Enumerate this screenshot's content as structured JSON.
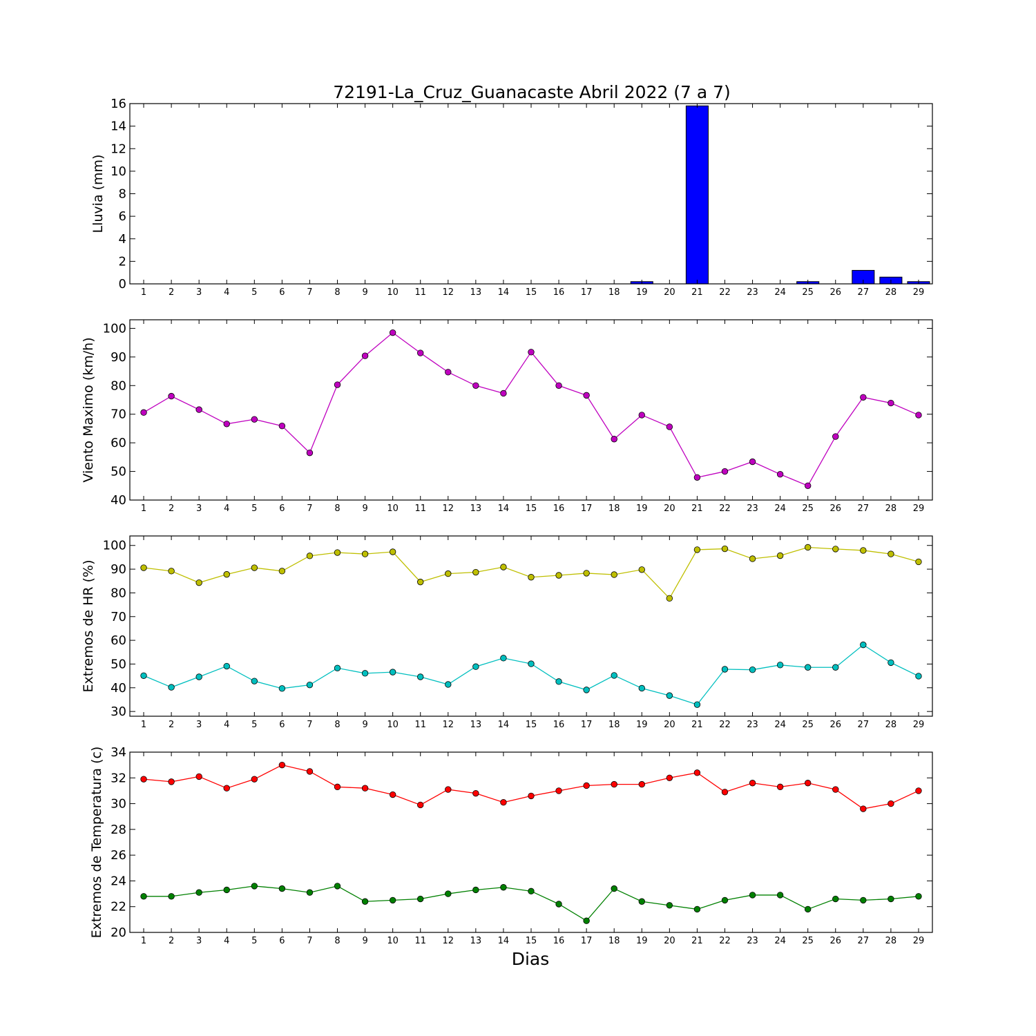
{
  "title": "72191-La_Cruz_Guanacaste Abril 2022  (7 a 7)",
  "xlabel": "Dias",
  "colors": {
    "rain_bar": "#0000ff",
    "wind": "#bf00bf",
    "hr_max": "#bfbf00",
    "hr_min": "#00bfbf",
    "temp_max": "#ff0000",
    "temp_min": "#008000"
  },
  "chart_data": [
    {
      "type": "bar",
      "ylabel": "Lluvia (mm)",
      "ylim": [
        0,
        16
      ],
      "yticks": [
        0,
        2,
        4,
        6,
        8,
        10,
        12,
        14,
        16
      ],
      "xlim": [
        0.5,
        29.5
      ],
      "categories": [
        "1",
        "2",
        "3",
        "4",
        "5",
        "6",
        "7",
        "8",
        "9",
        "10",
        "11",
        "12",
        "13",
        "14",
        "15",
        "16",
        "17",
        "18",
        "19",
        "20",
        "21",
        "22",
        "23",
        "24",
        "25",
        "26",
        "27",
        "28",
        "29"
      ],
      "series": [
        {
          "values": [
            0,
            0,
            0,
            0,
            0,
            0,
            0,
            0,
            0,
            0,
            0,
            0,
            0,
            0,
            0,
            0,
            0,
            0,
            0.2,
            0,
            15.8,
            0,
            0,
            0,
            0.2,
            0,
            1.2,
            0.6,
            0.2
          ]
        }
      ]
    },
    {
      "type": "line",
      "ylabel": "Viento Maximo (km/h)",
      "ylim": [
        40,
        103
      ],
      "yticks": [
        40,
        50,
        60,
        70,
        80,
        90,
        100
      ],
      "xlim": [
        0.5,
        29.5
      ],
      "categories": [
        "1",
        "2",
        "3",
        "4",
        "5",
        "6",
        "7",
        "8",
        "9",
        "10",
        "11",
        "12",
        "13",
        "14",
        "15",
        "16",
        "17",
        "18",
        "19",
        "20",
        "21",
        "22",
        "23",
        "24",
        "25",
        "26",
        "27",
        "28",
        "29"
      ],
      "series": [
        {
          "values": [
            70.6,
            76.3,
            71.6,
            66.6,
            68.2,
            65.9,
            56.5,
            80.3,
            90.4,
            98.5,
            91.4,
            84.7,
            80.0,
            77.3,
            91.7,
            80.0,
            76.6,
            61.3,
            69.7,
            65.6,
            47.9,
            50.0,
            53.4,
            49.0,
            45.0,
            62.2,
            75.9,
            73.9,
            69.7
          ]
        }
      ]
    },
    {
      "type": "line",
      "ylabel": "Extremos de HR (%)",
      "ylim": [
        28,
        104
      ],
      "yticks": [
        30,
        40,
        50,
        60,
        70,
        80,
        90,
        100
      ],
      "xlim": [
        0.5,
        29.5
      ],
      "categories": [
        "1",
        "2",
        "3",
        "4",
        "5",
        "6",
        "7",
        "8",
        "9",
        "10",
        "11",
        "12",
        "13",
        "14",
        "15",
        "16",
        "17",
        "18",
        "19",
        "20",
        "21",
        "22",
        "23",
        "24",
        "25",
        "26",
        "27",
        "28",
        "29"
      ],
      "series": [
        {
          "values": [
            90.6,
            89.2,
            84.3,
            87.8,
            90.6,
            89.2,
            95.6,
            97.0,
            96.4,
            97.3,
            84.6,
            88.1,
            88.7,
            90.9,
            86.6,
            87.4,
            88.3,
            87.7,
            89.8,
            77.7,
            98.2,
            98.6,
            94.4,
            95.7,
            99.2,
            98.5,
            97.9,
            96.4,
            93.1
          ]
        },
        {
          "values": [
            45.1,
            40.2,
            44.6,
            49.1,
            42.8,
            39.7,
            41.2,
            48.3,
            46.1,
            46.6,
            44.6,
            41.4,
            48.9,
            52.5,
            50.1,
            42.6,
            39.1,
            45.2,
            39.8,
            36.7,
            32.9,
            47.8,
            47.6,
            49.6,
            48.6,
            48.6,
            58.1,
            50.6,
            44.9
          ]
        }
      ]
    },
    {
      "type": "line",
      "ylabel": "Extremos de Temperatura (c)",
      "ylim": [
        20,
        34
      ],
      "yticks": [
        20,
        22,
        24,
        26,
        28,
        30,
        32,
        34
      ],
      "xlim": [
        0.5,
        29.5
      ],
      "categories": [
        "1",
        "2",
        "3",
        "4",
        "5",
        "6",
        "7",
        "8",
        "9",
        "10",
        "11",
        "12",
        "13",
        "14",
        "15",
        "16",
        "17",
        "18",
        "19",
        "20",
        "21",
        "22",
        "23",
        "24",
        "25",
        "26",
        "27",
        "28",
        "29"
      ],
      "series": [
        {
          "values": [
            31.9,
            31.7,
            32.1,
            31.2,
            31.9,
            33.0,
            32.5,
            31.3,
            31.2,
            30.7,
            29.9,
            31.1,
            30.8,
            30.1,
            30.6,
            31.0,
            31.4,
            31.5,
            31.5,
            32.0,
            32.4,
            30.9,
            31.6,
            31.3,
            31.6,
            31.1,
            29.6,
            30.0,
            31.0
          ]
        },
        {
          "values": [
            22.8,
            22.8,
            23.1,
            23.3,
            23.6,
            23.4,
            23.1,
            23.6,
            22.4,
            22.5,
            22.6,
            23.0,
            23.3,
            23.5,
            23.2,
            22.2,
            20.9,
            23.4,
            22.4,
            22.1,
            21.8,
            22.5,
            22.9,
            22.9,
            21.8,
            22.6,
            22.5,
            22.6,
            22.8
          ]
        }
      ]
    }
  ]
}
